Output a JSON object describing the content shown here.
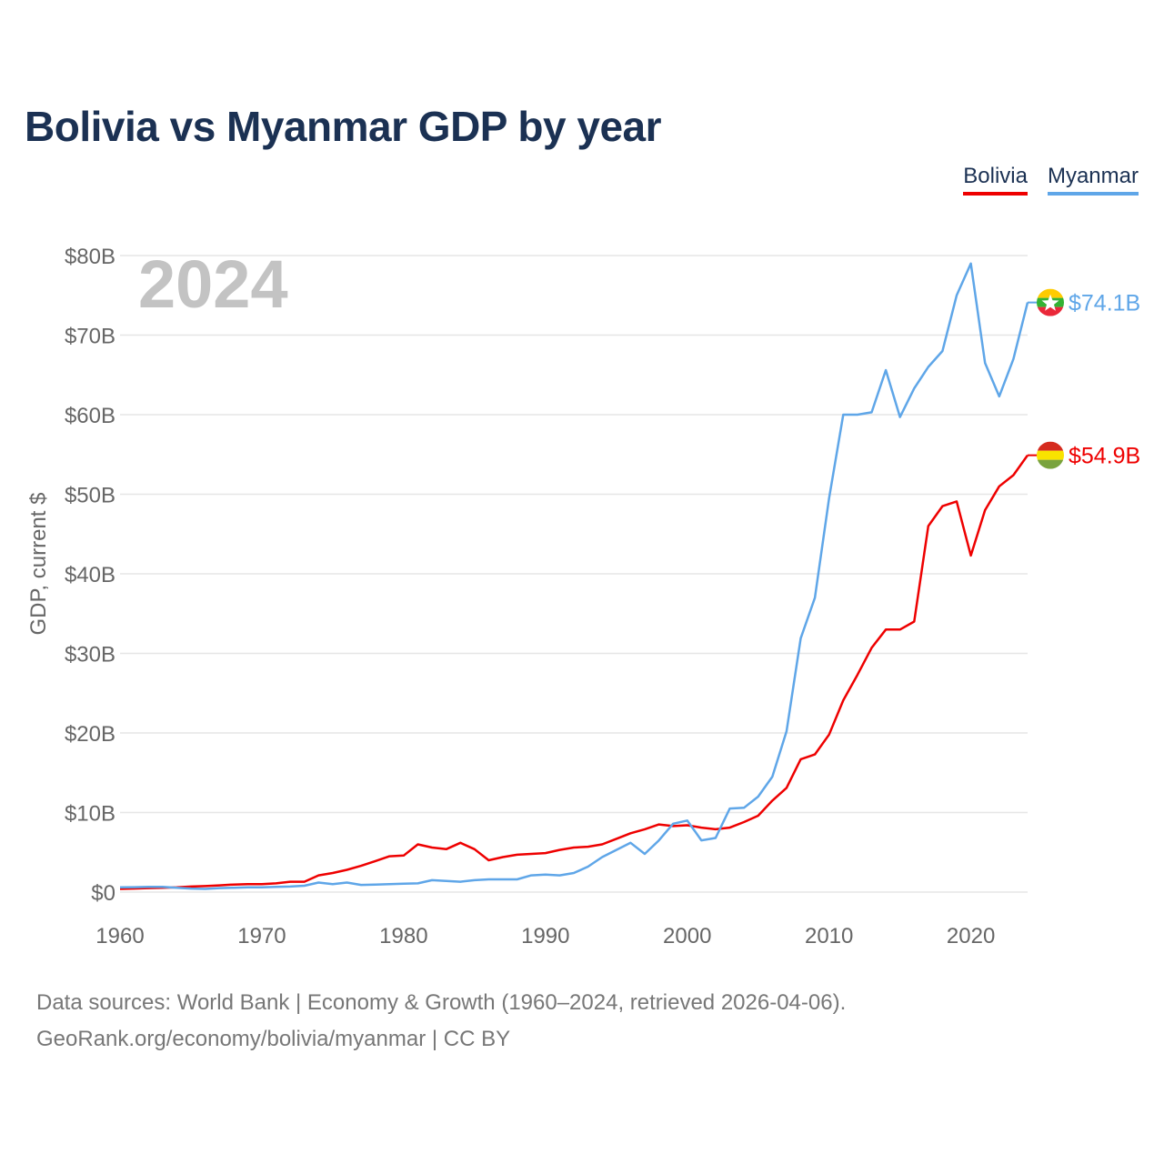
{
  "title": "Bolivia vs Myanmar GDP by year",
  "year_label": "2024",
  "legend": [
    {
      "label": "Bolivia",
      "color": "#ee0000"
    },
    {
      "label": "Myanmar",
      "color": "#5fa6e8"
    }
  ],
  "source_line1": "Data sources: World Bank | Economy & Growth (1960–2024, retrieved 2026-04-06).",
  "source_line2": "GeoRank.org/economy/bolivia/myanmar | CC BY",
  "end_labels": {
    "Bolivia": "$54.9B",
    "Myanmar": "$74.1B"
  },
  "flag_colors": {
    "Bolivia": [
      "#d52b1e",
      "#f9e300",
      "#79a33d"
    ],
    "Myanmar": [
      "#fecb00",
      "#34b233",
      "#ea2839"
    ]
  },
  "chart_data": {
    "type": "line",
    "title": "Bolivia vs Myanmar GDP by year",
    "xlabel": "",
    "ylabel": "GDP, current $",
    "xlim": [
      1960,
      2024
    ],
    "ylim": [
      0,
      80
    ],
    "x_ticks": [
      1960,
      1970,
      1980,
      1990,
      2000,
      2010,
      2020
    ],
    "y_ticks": [
      0,
      10,
      20,
      30,
      40,
      50,
      60,
      70,
      80
    ],
    "y_tick_labels": [
      "$0",
      "$10B",
      "$20B",
      "$30B",
      "$40B",
      "$50B",
      "$60B",
      "$70B",
      "$80B"
    ],
    "x": [
      1960,
      1961,
      1962,
      1963,
      1964,
      1965,
      1966,
      1967,
      1968,
      1969,
      1970,
      1971,
      1972,
      1973,
      1974,
      1975,
      1976,
      1977,
      1978,
      1979,
      1980,
      1981,
      1982,
      1983,
      1984,
      1985,
      1986,
      1987,
      1988,
      1989,
      1990,
      1991,
      1992,
      1993,
      1994,
      1995,
      1996,
      1997,
      1998,
      1999,
      2000,
      2001,
      2002,
      2003,
      2004,
      2005,
      2006,
      2007,
      2008,
      2009,
      2010,
      2011,
      2012,
      2013,
      2014,
      2015,
      2016,
      2017,
      2018,
      2019,
      2020,
      2021,
      2022,
      2023,
      2024
    ],
    "series": [
      {
        "name": "Bolivia",
        "color": "#ee0000",
        "values": [
          0.4,
          0.45,
          0.5,
          0.55,
          0.6,
          0.7,
          0.75,
          0.85,
          0.95,
          1.0,
          1.0,
          1.1,
          1.3,
          1.3,
          2.1,
          2.4,
          2.8,
          3.3,
          3.9,
          4.5,
          4.6,
          6.0,
          5.6,
          5.4,
          6.2,
          5.4,
          4.0,
          4.4,
          4.7,
          4.8,
          4.9,
          5.3,
          5.6,
          5.7,
          6.0,
          6.7,
          7.4,
          7.9,
          8.5,
          8.3,
          8.4,
          8.1,
          7.9,
          8.1,
          8.8,
          9.6,
          11.5,
          13.1,
          16.7,
          17.3,
          19.8,
          24.1,
          27.3,
          30.7,
          33.0,
          33.0,
          34.0,
          46.0,
          48.5,
          49.1,
          42.3,
          48.0,
          51.0,
          52.4,
          54.9
        ]
      },
      {
        "name": "Myanmar",
        "color": "#5fa6e8",
        "values": [
          0.6,
          0.62,
          0.65,
          0.66,
          0.55,
          0.45,
          0.4,
          0.5,
          0.55,
          0.6,
          0.6,
          0.65,
          0.7,
          0.8,
          1.2,
          1.0,
          1.2,
          0.9,
          0.95,
          1.0,
          1.05,
          1.1,
          1.5,
          1.4,
          1.3,
          1.5,
          1.6,
          1.6,
          1.6,
          2.1,
          2.2,
          2.1,
          2.4,
          3.2,
          4.4,
          5.3,
          6.2,
          4.8,
          6.5,
          8.6,
          9.0,
          6.5,
          6.8,
          10.5,
          10.6,
          12.0,
          14.5,
          20.2,
          31.9,
          37.0,
          49.5,
          60.0,
          60.0,
          60.3,
          65.6,
          59.7,
          63.3,
          66.0,
          68.0,
          75.0,
          79.0,
          66.5,
          62.3,
          67.0,
          74.1
        ]
      }
    ]
  }
}
